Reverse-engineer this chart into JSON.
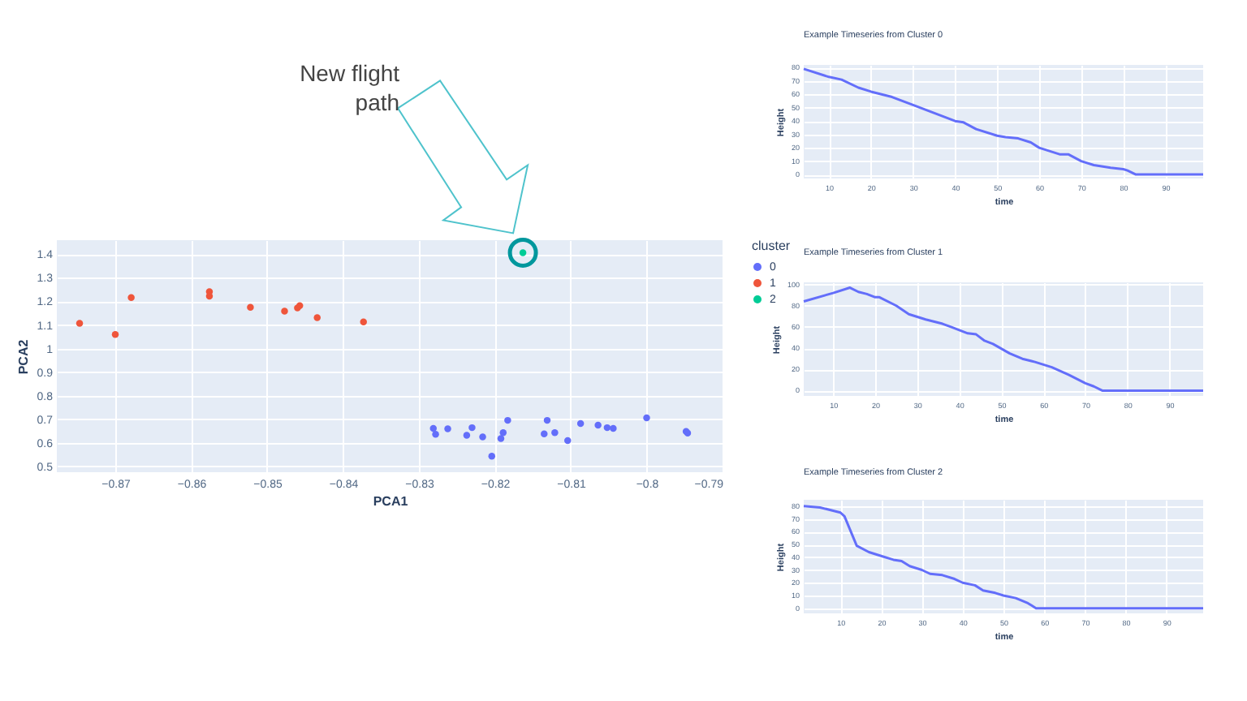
{
  "chart_data": [
    {
      "type": "scatter",
      "xlabel": "PCA1",
      "ylabel": "PCA2",
      "legend_title": "cluster",
      "legend": "right",
      "grid": true,
      "marker": "circle",
      "xlim": [
        -0.8777,
        -0.79
      ],
      "xticks": [
        -0.87,
        -0.86,
        -0.85,
        -0.84,
        -0.83,
        -0.82,
        -0.81,
        -0.8,
        -0.79
      ],
      "ylim": [
        0.475,
        1.46
      ],
      "yticks": [
        0.5,
        0.6,
        0.7,
        0.8,
        0.9,
        1,
        1.1,
        1.2,
        1.3,
        1.4
      ],
      "annotations": [
        "New flight path"
      ],
      "series": [
        {
          "name": "0",
          "color": "#636efa",
          "x": [
            -0.8281,
            -0.8278,
            -0.8262,
            -0.8237,
            -0.823,
            -0.8216,
            -0.8204,
            -0.8192,
            -0.8189,
            -0.8183,
            -0.8135,
            -0.8131,
            -0.8121,
            -0.8104,
            -0.8087,
            -0.8064,
            -0.8052,
            -0.8044,
            -0.8,
            -0.7948,
            -0.7946
          ],
          "values": [
            0.661,
            0.636,
            0.659,
            0.632,
            0.664,
            0.625,
            0.543,
            0.618,
            0.643,
            0.695,
            0.638,
            0.695,
            0.643,
            0.609,
            0.682,
            0.675,
            0.664,
            0.661,
            0.706,
            0.648,
            0.641
          ]
        },
        {
          "name": "1",
          "color": "#ef553b",
          "x": [
            -0.8747,
            -0.87,
            -0.8679,
            -0.8576,
            -0.8576,
            -0.8522,
            -0.8477,
            -0.846,
            -0.8457,
            -0.8434,
            -0.8373
          ],
          "values": [
            1.107,
            1.06,
            1.216,
            1.241,
            1.222,
            1.175,
            1.159,
            1.172,
            1.182,
            1.131,
            1.113
          ]
        },
        {
          "name": "2",
          "color": "#00cc96",
          "x": [
            -0.8163
          ],
          "values": [
            1.407
          ]
        }
      ]
    },
    {
      "type": "line",
      "title": "Example Timeseries from Cluster 0",
      "xlabel": "time",
      "ylabel": "Height",
      "grid": true,
      "xlim": [
        4,
        99
      ],
      "xticks": [
        10,
        20,
        30,
        40,
        50,
        60,
        70,
        80,
        90
      ],
      "ylim": [
        -3,
        82
      ],
      "yticks": [
        0,
        10,
        20,
        30,
        40,
        50,
        60,
        70,
        80
      ],
      "series": [
        {
          "color": "#636efa",
          "x": [
            4,
            10,
            13,
            17,
            20,
            25,
            30,
            40,
            42,
            45,
            50,
            52,
            55,
            58,
            60,
            65,
            67,
            70,
            73,
            77,
            80,
            81,
            83,
            99
          ],
          "values": [
            79,
            73,
            71,
            65,
            62,
            58,
            52,
            40,
            39,
            34,
            29,
            28,
            27,
            24,
            20,
            15,
            15,
            10,
            7,
            5,
            4,
            3,
            0,
            0
          ]
        }
      ]
    },
    {
      "type": "line",
      "title": "Example Timeseries from Cluster 1",
      "xlabel": "time",
      "ylabel": "Height",
      "grid": true,
      "xlim": [
        3,
        98
      ],
      "xticks": [
        10,
        20,
        30,
        40,
        50,
        60,
        70,
        80,
        90
      ],
      "ylim": [
        -5,
        102
      ],
      "yticks": [
        0,
        20,
        40,
        60,
        80,
        100
      ],
      "series": [
        {
          "color": "#636efa",
          "x": [
            3,
            10,
            14,
            16,
            18,
            20,
            21,
            25,
            28,
            32,
            36,
            38,
            42,
            44,
            46,
            48,
            52,
            55,
            58,
            62,
            66,
            70,
            72,
            74,
            98
          ],
          "values": [
            84,
            92,
            97,
            93,
            91,
            88,
            88,
            80,
            72,
            67,
            63,
            60,
            54,
            53,
            47,
            44,
            35,
            30,
            27,
            22,
            15,
            7,
            4,
            0,
            0
          ]
        }
      ]
    },
    {
      "type": "line",
      "title": "Example Timeseries from Cluster 2",
      "xlabel": "time",
      "ylabel": "Height",
      "grid": true,
      "xlim": [
        1,
        99
      ],
      "xticks": [
        10,
        20,
        30,
        40,
        50,
        60,
        70,
        80,
        90
      ],
      "ylim": [
        -4,
        85
      ],
      "yticks": [
        0,
        10,
        20,
        30,
        40,
        50,
        60,
        70,
        80
      ],
      "series": [
        {
          "color": "#636efa",
          "x": [
            1,
            5,
            10,
            11,
            14,
            17,
            20,
            23,
            25,
            27,
            30,
            32,
            35,
            38,
            40,
            43,
            45,
            48,
            50,
            53,
            56,
            58,
            99
          ],
          "values": [
            80,
            79,
            75,
            72,
            49,
            44,
            41,
            38,
            37,
            33,
            30,
            27,
            26,
            23,
            20,
            18,
            14,
            12,
            10,
            8,
            4,
            0,
            0
          ]
        }
      ]
    }
  ]
}
